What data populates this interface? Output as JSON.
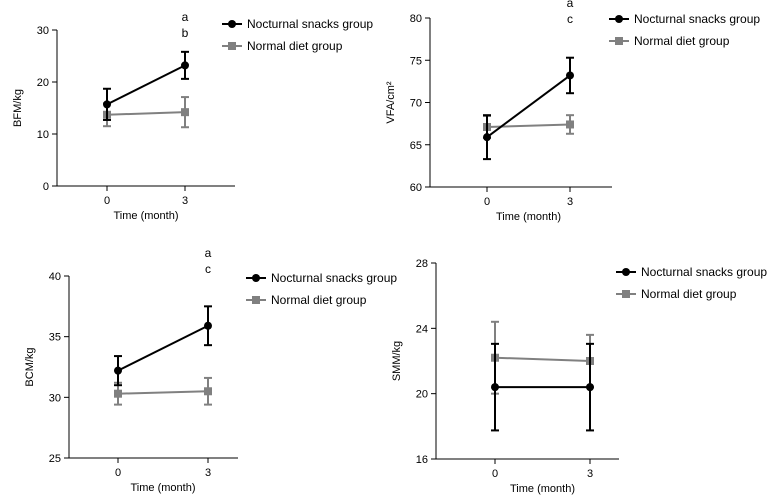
{
  "colors": {
    "nocturnal": "#000000",
    "normal": "#808080"
  },
  "chart_data": [
    {
      "id": "bfm",
      "type": "line",
      "ylabel": "BFM/kg",
      "xlabel": "Time (month)",
      "x": [
        0,
        3
      ],
      "xticks": [
        "0",
        "3"
      ],
      "ylim": [
        0,
        30
      ],
      "yticks": [
        0,
        10,
        20,
        30
      ],
      "yticklabels": [
        "0",
        "10",
        "20",
        "30"
      ],
      "series": [
        {
          "name": "Nocturnal snacks group",
          "marker": "circle",
          "values": [
            15.7,
            23.2
          ],
          "errors": [
            3.0,
            2.6
          ]
        },
        {
          "name": "Normal diet group",
          "marker": "square",
          "values": [
            13.7,
            14.2
          ],
          "errors": [
            2.2,
            2.9
          ]
        }
      ],
      "annotations": [
        "a",
        "b"
      ],
      "legend": "top-right"
    },
    {
      "id": "vfa",
      "type": "line",
      "ylabel": "VFA/cm²",
      "xlabel": "Time (month)",
      "x": [
        0,
        3
      ],
      "xticks": [
        "0",
        "3"
      ],
      "ylim": [
        60,
        80
      ],
      "yticks": [
        60,
        65,
        70,
        75,
        80
      ],
      "yticklabels": [
        "60",
        "65",
        "70",
        "75",
        "80"
      ],
      "series": [
        {
          "name": "Nocturnal snacks group",
          "marker": "circle",
          "values": [
            65.9,
            73.2
          ],
          "errors": [
            2.6,
            2.1
          ]
        },
        {
          "name": "Normal diet group",
          "marker": "square",
          "values": [
            67.1,
            67.4
          ],
          "errors": [
            1.3,
            1.1
          ]
        }
      ],
      "annotations": [
        "a",
        "c"
      ],
      "legend": "top-right"
    },
    {
      "id": "bcm",
      "type": "line",
      "ylabel": "BCM/kg",
      "xlabel": "Time (month)",
      "x": [
        0,
        3
      ],
      "xticks": [
        "0",
        "3"
      ],
      "ylim": [
        25,
        40
      ],
      "yticks": [
        25,
        30,
        35,
        40
      ],
      "yticklabels": [
        "25",
        "30",
        "35",
        "40"
      ],
      "series": [
        {
          "name": "Nocturnal snacks group",
          "marker": "circle",
          "values": [
            32.2,
            35.9
          ],
          "errors": [
            1.2,
            1.6
          ]
        },
        {
          "name": "Normal diet group",
          "marker": "square",
          "values": [
            30.3,
            30.5
          ],
          "errors": [
            0.9,
            1.1
          ]
        }
      ],
      "annotations": [
        "a",
        "c"
      ],
      "legend": "top-right"
    },
    {
      "id": "smm",
      "type": "line",
      "ylabel": "SMM/kg",
      "xlabel": "Time (month)",
      "x": [
        0,
        3
      ],
      "xticks": [
        "0",
        "3"
      ],
      "ylim": [
        16,
        28
      ],
      "yticks": [
        16,
        20,
        24,
        28
      ],
      "yticklabels": [
        "16",
        "20",
        "24",
        "28"
      ],
      "series": [
        {
          "name": "Nocturnal snacks group",
          "marker": "circle",
          "values": [
            20.4,
            20.4
          ],
          "errors": [
            2.65,
            2.65
          ]
        },
        {
          "name": "Normal diet group",
          "marker": "square",
          "values": [
            22.2,
            22.0
          ],
          "errors": [
            2.2,
            1.6
          ]
        }
      ],
      "annotations": [],
      "legend": "top-right"
    }
  ]
}
